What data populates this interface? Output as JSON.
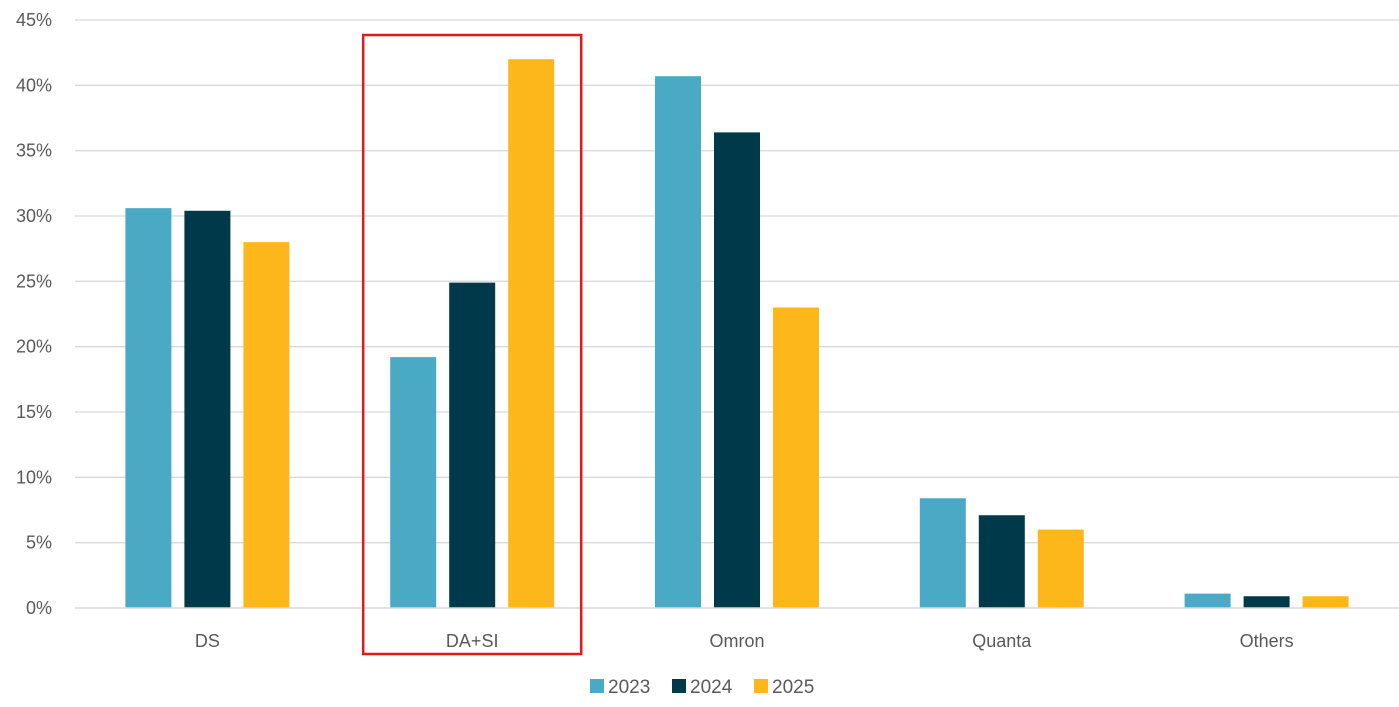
{
  "chart_data": {
    "type": "bar",
    "categories": [
      "DS",
      "DA+SI",
      "Omron",
      "Quanta",
      "Others"
    ],
    "series": [
      {
        "name": "2023",
        "color": "#4AAAC5",
        "values": [
          30.6,
          19.2,
          40.7,
          8.4,
          1.1
        ]
      },
      {
        "name": "2024",
        "color": "#003A4A",
        "values": [
          30.4,
          24.9,
          36.4,
          7.1,
          0.9
        ]
      },
      {
        "name": "2025",
        "color": "#FDB71A",
        "values": [
          28.0,
          42.0,
          23.0,
          6.0,
          0.9
        ]
      }
    ],
    "y_ticks": [
      "0%",
      "5%",
      "10%",
      "15%",
      "20%",
      "25%",
      "30%",
      "35%",
      "40%",
      "45%"
    ],
    "ylim": [
      0,
      45
    ],
    "grid": true,
    "legend": "bottom-center",
    "highlight": {
      "category": "DA+SI",
      "color": "#E0191B"
    },
    "gridline_color": "#D9D9D9",
    "axis_color": "#D9D9D9"
  }
}
